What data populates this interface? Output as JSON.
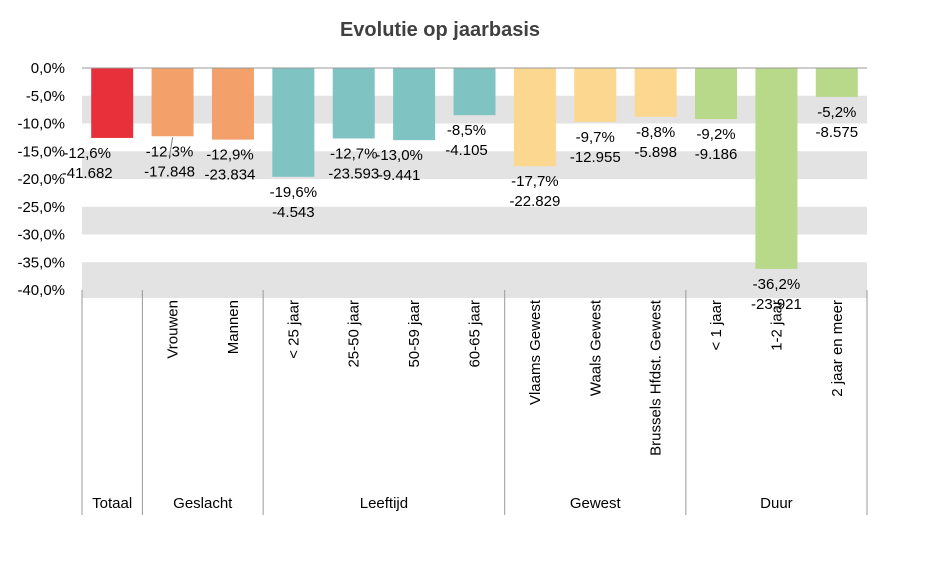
{
  "chart_data": {
    "type": "bar",
    "title": "Evolutie op jaarbasis",
    "ylim": [
      -40,
      0
    ],
    "yticks": [
      "0,0%",
      "-5,0%",
      "-10,0%",
      "-15,0%",
      "-20,0%",
      "-25,0%",
      "-30,0%",
      "-35,0%",
      "-40,0%"
    ],
    "grid": "striped horizontal bands",
    "categories": [
      "",
      "Vrouwen",
      "Mannen",
      "< 25 jaar",
      "25-50 jaar",
      "50-59 jaar",
      "60-65 jaar",
      "Vlaams Gewest",
      "Waals Gewest",
      "Brussels Hfdst. Gewest",
      "< 1 jaar",
      "1-2 jaar",
      "2 jaar en meer"
    ],
    "values": [
      -12.6,
      -12.3,
      -12.9,
      -19.6,
      -12.7,
      -13.0,
      -8.5,
      -17.7,
      -9.7,
      -8.8,
      -9.2,
      -36.2,
      -5.2
    ],
    "pct_labels": [
      "-12,6%",
      "-12,3%",
      "-12,9%",
      "-19,6%",
      "-12,7%",
      "-13,0%",
      "-8,5%",
      "-17,7%",
      "-9,7%",
      "-8,8%",
      "-9,2%",
      "-36,2%",
      "-5,2%"
    ],
    "count_labels": [
      "-41.682",
      "-17.848",
      "-23.834",
      "-4.543",
      "-23.593",
      "-9.441",
      "-4.105",
      "-22.829",
      "-12.955",
      "-5.898",
      "-9.186",
      "-23.921",
      "-8.575"
    ],
    "colors": [
      "#e8303a",
      "#f4a06a",
      "#f4a06a",
      "#7fc3c3",
      "#7fc3c3",
      "#7fc3c3",
      "#7fc3c3",
      "#fcd78f",
      "#fcd78f",
      "#fcd78f",
      "#b8d98a",
      "#b8d98a",
      "#b8d98a"
    ],
    "groups": [
      {
        "name": "Totaal",
        "start": 0,
        "end": 0
      },
      {
        "name": "Geslacht",
        "start": 1,
        "end": 2
      },
      {
        "name": "Leeftijd",
        "start": 3,
        "end": 6
      },
      {
        "name": "Gewest",
        "start": 7,
        "end": 9
      },
      {
        "name": "Duur",
        "start": 10,
        "end": 12
      }
    ]
  }
}
